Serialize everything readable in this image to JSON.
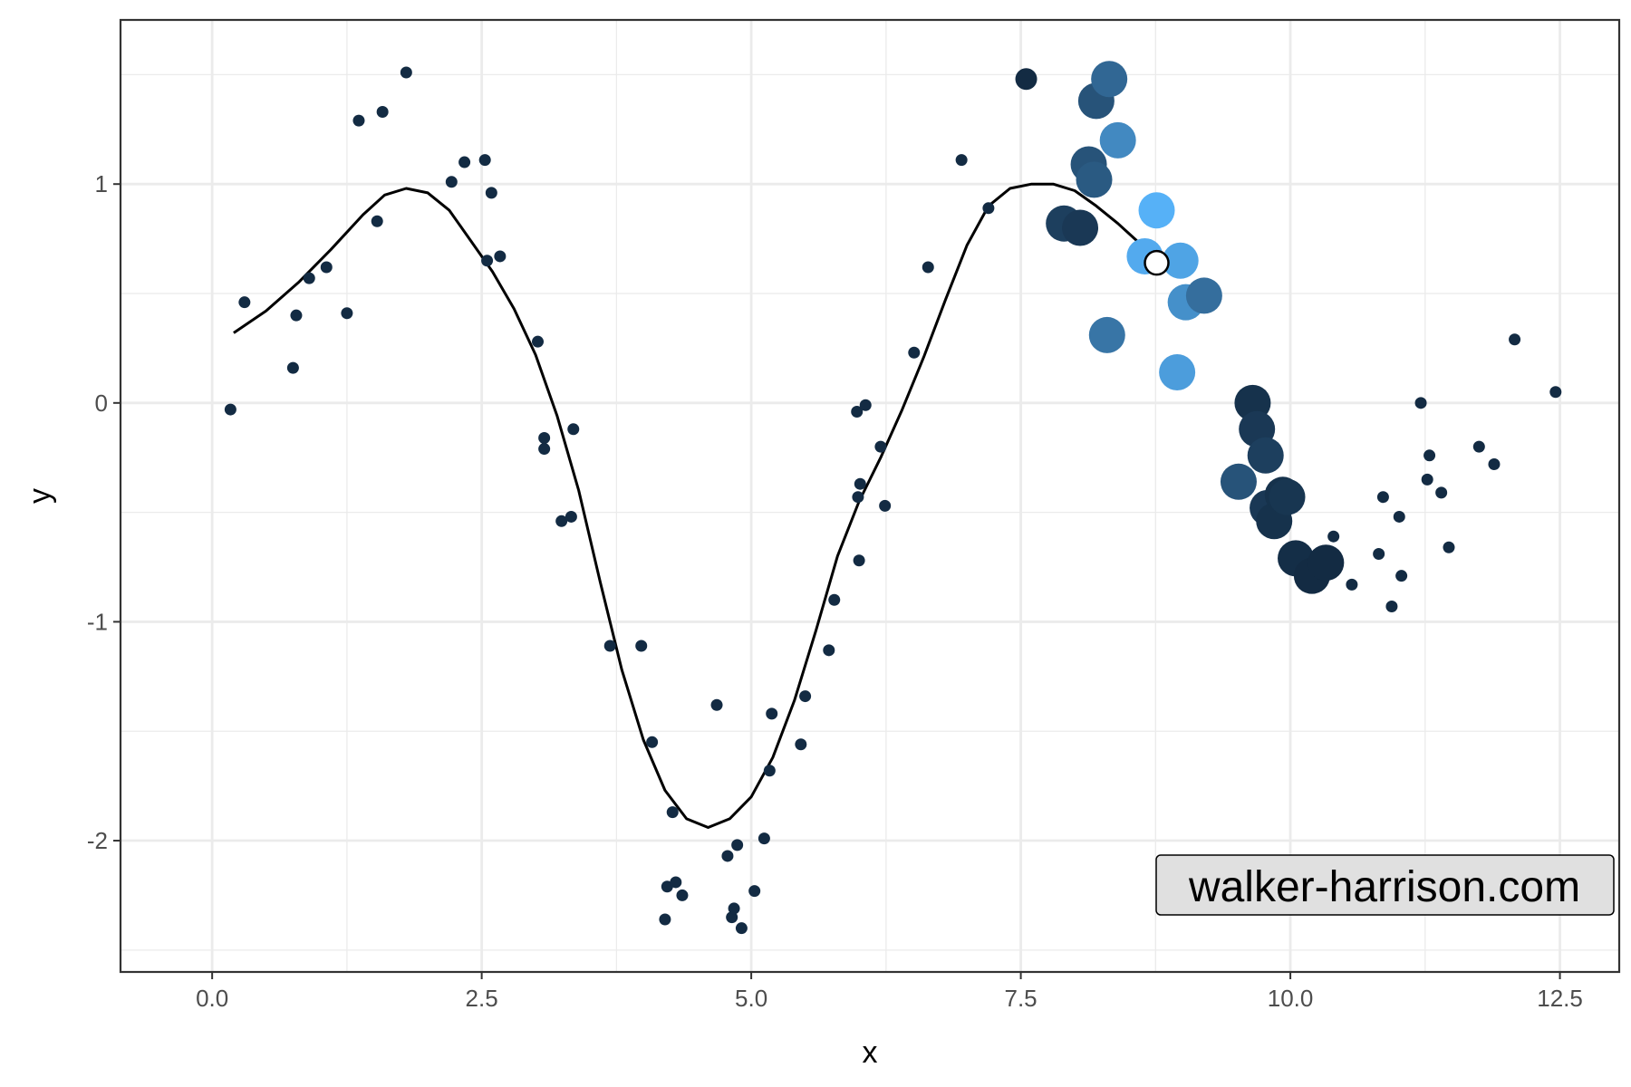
{
  "chart_data": {
    "type": "scatter",
    "title": "",
    "xlabel": "x",
    "ylabel": "y",
    "xlim": [
      -0.85,
      13.05
    ],
    "ylim": [
      -2.6,
      1.75
    ],
    "x_ticks": [
      0.0,
      2.5,
      5.0,
      7.5,
      10.0,
      12.5
    ],
    "x_tick_labels": [
      "0.0",
      "2.5",
      "5.0",
      "7.5",
      "10.0",
      "12.5"
    ],
    "y_ticks": [
      -2,
      -1,
      0,
      1
    ],
    "y_tick_labels": [
      "-2",
      "-1",
      "0",
      "1"
    ],
    "grid": true,
    "legend": "none",
    "colors": {
      "small_point": "#132b43",
      "highlight_dark": "#132b43",
      "highlight_light": "#56b1f7",
      "curve": "#000000",
      "panel_border": "#333333",
      "grid": "#ebebeb",
      "watermark_fill": "#e0e0e0"
    },
    "points": [
      {
        "x": 0.17,
        "y": -0.03
      },
      {
        "x": 0.3,
        "y": 0.46
      },
      {
        "x": 0.75,
        "y": 0.16
      },
      {
        "x": 0.78,
        "y": 0.4
      },
      {
        "x": 0.9,
        "y": 0.57
      },
      {
        "x": 1.06,
        "y": 0.62
      },
      {
        "x": 1.25,
        "y": 0.41
      },
      {
        "x": 1.36,
        "y": 1.29
      },
      {
        "x": 1.53,
        "y": 0.83
      },
      {
        "x": 1.58,
        "y": 1.33
      },
      {
        "x": 1.8,
        "y": 1.51
      },
      {
        "x": 2.22,
        "y": 1.01
      },
      {
        "x": 2.34,
        "y": 1.1
      },
      {
        "x": 2.53,
        "y": 1.11
      },
      {
        "x": 2.55,
        "y": 0.65
      },
      {
        "x": 2.59,
        "y": 0.96
      },
      {
        "x": 2.67,
        "y": 0.67
      },
      {
        "x": 3.02,
        "y": 0.28
      },
      {
        "x": 3.08,
        "y": -0.16
      },
      {
        "x": 3.08,
        "y": -0.21
      },
      {
        "x": 3.24,
        "y": -0.54
      },
      {
        "x": 3.33,
        "y": -0.52
      },
      {
        "x": 3.35,
        "y": -0.12
      },
      {
        "x": 3.69,
        "y": -1.11
      },
      {
        "x": 3.98,
        "y": -1.11
      },
      {
        "x": 4.08,
        "y": -1.55
      },
      {
        "x": 4.2,
        "y": -2.36
      },
      {
        "x": 4.22,
        "y": -2.21
      },
      {
        "x": 4.27,
        "y": -1.87
      },
      {
        "x": 4.3,
        "y": -2.19
      },
      {
        "x": 4.36,
        "y": -2.25
      },
      {
        "x": 4.68,
        "y": -1.38
      },
      {
        "x": 4.78,
        "y": -2.07
      },
      {
        "x": 4.82,
        "y": -2.35
      },
      {
        "x": 4.84,
        "y": -2.31
      },
      {
        "x": 4.87,
        "y": -2.02
      },
      {
        "x": 4.91,
        "y": -2.4
      },
      {
        "x": 5.03,
        "y": -2.23
      },
      {
        "x": 5.12,
        "y": -1.99
      },
      {
        "x": 5.17,
        "y": -1.68
      },
      {
        "x": 5.19,
        "y": -1.42
      },
      {
        "x": 5.46,
        "y": -1.56
      },
      {
        "x": 5.5,
        "y": -1.34
      },
      {
        "x": 5.72,
        "y": -1.13
      },
      {
        "x": 5.77,
        "y": -0.9
      },
      {
        "x": 5.98,
        "y": -0.04
      },
      {
        "x": 5.99,
        "y": -0.43
      },
      {
        "x": 6.0,
        "y": -0.72
      },
      {
        "x": 6.01,
        "y": -0.37
      },
      {
        "x": 6.06,
        "y": -0.01
      },
      {
        "x": 6.2,
        "y": -0.2
      },
      {
        "x": 6.24,
        "y": -0.47
      },
      {
        "x": 6.51,
        "y": 0.23
      },
      {
        "x": 6.64,
        "y": 0.62
      },
      {
        "x": 6.95,
        "y": 1.11
      },
      {
        "x": 7.2,
        "y": 0.89
      },
      {
        "x": 11.21,
        "y": 0.0
      },
      {
        "x": 11.27,
        "y": -0.35
      },
      {
        "x": 11.29,
        "y": -0.24
      },
      {
        "x": 11.4,
        "y": -0.41
      },
      {
        "x": 11.47,
        "y": -0.66
      },
      {
        "x": 11.75,
        "y": -0.2
      },
      {
        "x": 11.89,
        "y": -0.28
      },
      {
        "x": 12.08,
        "y": 0.29
      },
      {
        "x": 12.46,
        "y": 0.05
      },
      {
        "x": 10.4,
        "y": -0.61
      },
      {
        "x": 10.57,
        "y": -0.83
      },
      {
        "x": 10.82,
        "y": -0.69
      },
      {
        "x": 10.86,
        "y": -0.43
      },
      {
        "x": 10.94,
        "y": -0.93
      },
      {
        "x": 11.01,
        "y": -0.52
      },
      {
        "x": 11.03,
        "y": -0.79
      }
    ],
    "highlighted_points": [
      {
        "x": 7.55,
        "y": 1.48,
        "shade": 0.0
      },
      {
        "x": 7.9,
        "y": 0.82,
        "shade": 0.15
      },
      {
        "x": 8.05,
        "y": 0.8,
        "shade": 0.1
      },
      {
        "x": 8.13,
        "y": 1.09,
        "shade": 0.3
      },
      {
        "x": 8.18,
        "y": 1.02,
        "shade": 0.35
      },
      {
        "x": 8.2,
        "y": 1.38,
        "shade": 0.3
      },
      {
        "x": 8.3,
        "y": 0.31,
        "shade": 0.55
      },
      {
        "x": 8.32,
        "y": 1.48,
        "shade": 0.45
      },
      {
        "x": 8.4,
        "y": 1.2,
        "shade": 0.7
      },
      {
        "x": 8.65,
        "y": 0.67,
        "shade": 0.95
      },
      {
        "x": 8.76,
        "y": 0.88,
        "shade": 1.0
      },
      {
        "x": 8.95,
        "y": 0.14,
        "shade": 0.85
      },
      {
        "x": 8.98,
        "y": 0.65,
        "shade": 0.9
      },
      {
        "x": 9.03,
        "y": 0.46,
        "shade": 0.75
      },
      {
        "x": 9.2,
        "y": 0.49,
        "shade": 0.5
      },
      {
        "x": 9.52,
        "y": -0.36,
        "shade": 0.3
      },
      {
        "x": 9.65,
        "y": -0.0,
        "shade": 0.05
      },
      {
        "x": 9.69,
        "y": -0.12,
        "shade": 0.1
      },
      {
        "x": 9.77,
        "y": -0.24,
        "shade": 0.15
      },
      {
        "x": 9.79,
        "y": -0.48,
        "shade": 0.1
      },
      {
        "x": 9.85,
        "y": -0.54,
        "shade": 0.05
      },
      {
        "x": 9.93,
        "y": -0.42,
        "shade": 0.05
      },
      {
        "x": 9.97,
        "y": -0.43,
        "shade": 0.08
      },
      {
        "x": 10.05,
        "y": -0.71,
        "shade": 0.02
      },
      {
        "x": 10.2,
        "y": -0.79,
        "shade": 0.0
      },
      {
        "x": 10.33,
        "y": -0.73,
        "shade": 0.0
      }
    ],
    "curve": [
      {
        "x": 0.2,
        "y": 0.32
      },
      {
        "x": 0.5,
        "y": 0.42
      },
      {
        "x": 0.8,
        "y": 0.55
      },
      {
        "x": 1.1,
        "y": 0.7
      },
      {
        "x": 1.4,
        "y": 0.86
      },
      {
        "x": 1.6,
        "y": 0.95
      },
      {
        "x": 1.8,
        "y": 0.98
      },
      {
        "x": 2.0,
        "y": 0.96
      },
      {
        "x": 2.2,
        "y": 0.88
      },
      {
        "x": 2.4,
        "y": 0.74
      },
      {
        "x": 2.6,
        "y": 0.6
      },
      {
        "x": 2.8,
        "y": 0.43
      },
      {
        "x": 3.0,
        "y": 0.22
      },
      {
        "x": 3.2,
        "y": -0.06
      },
      {
        "x": 3.4,
        "y": -0.4
      },
      {
        "x": 3.6,
        "y": -0.82
      },
      {
        "x": 3.8,
        "y": -1.22
      },
      {
        "x": 4.0,
        "y": -1.54
      },
      {
        "x": 4.2,
        "y": -1.77
      },
      {
        "x": 4.4,
        "y": -1.9
      },
      {
        "x": 4.6,
        "y": -1.94
      },
      {
        "x": 4.8,
        "y": -1.9
      },
      {
        "x": 5.0,
        "y": -1.8
      },
      {
        "x": 5.2,
        "y": -1.62
      },
      {
        "x": 5.4,
        "y": -1.36
      },
      {
        "x": 5.6,
        "y": -1.04
      },
      {
        "x": 5.8,
        "y": -0.7
      },
      {
        "x": 6.0,
        "y": -0.45
      },
      {
        "x": 6.2,
        "y": -0.25
      },
      {
        "x": 6.4,
        "y": -0.03
      },
      {
        "x": 6.6,
        "y": 0.21
      },
      {
        "x": 6.8,
        "y": 0.47
      },
      {
        "x": 7.0,
        "y": 0.72
      },
      {
        "x": 7.2,
        "y": 0.9
      },
      {
        "x": 7.4,
        "y": 0.98
      },
      {
        "x": 7.6,
        "y": 1.0
      },
      {
        "x": 7.8,
        "y": 1.0
      },
      {
        "x": 8.0,
        "y": 0.97
      },
      {
        "x": 8.2,
        "y": 0.9
      },
      {
        "x": 8.4,
        "y": 0.82
      },
      {
        "x": 8.6,
        "y": 0.73
      },
      {
        "x": 8.76,
        "y": 0.64
      }
    ],
    "curve_end_marker": {
      "x": 8.76,
      "y": 0.64
    },
    "annotation": "walker-harrison.com"
  }
}
